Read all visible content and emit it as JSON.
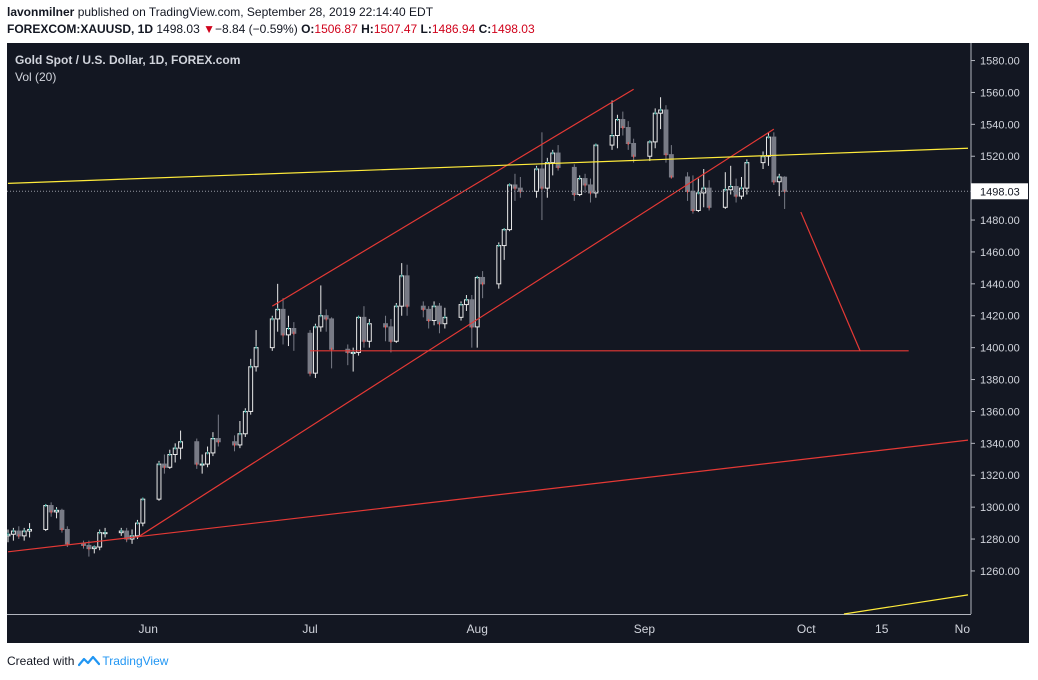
{
  "header": {
    "author": "lavonmilner",
    "published_text": " published on TradingView.com, September 28, 2019 22:14:40 EDT",
    "symbol": "FOREXCOM:XAUUSD, 1D",
    "last": "1498.03",
    "change": "−8.84 (−0.59%)",
    "open_label": "O:",
    "open": "1506.87",
    "high_label": "H:",
    "high": "1507.47",
    "low_label": "L:",
    "low": "1486.94",
    "close_label": "C:",
    "close": "1498.03"
  },
  "legend": {
    "title": "Gold Spot / U.S. Dollar, 1D, FOREX.com",
    "volume": "Vol (20)"
  },
  "footer": {
    "created_with": "Created with",
    "brand": "TradingView"
  },
  "colors": {
    "background": "#131722",
    "candle_up": "#e8e8e8",
    "candle_down": "#787b86",
    "volume_up": "#26a69a",
    "volume_down": "#ef5350",
    "trendline_red": "#e53935",
    "trendline_yellow": "#ffeb3b",
    "price_label_bg": "#ffffff"
  },
  "chart_data": {
    "type": "candlestick",
    "symbol": "XAUUSD",
    "timeframe": "1D",
    "x_tick_labels": [
      "Jun",
      "Jul",
      "Aug",
      "Sep",
      "Oct",
      "15",
      "No"
    ],
    "y_ticks": [
      1260,
      1280,
      1300,
      1320,
      1340,
      1360,
      1380,
      1400,
      1420,
      1440,
      1460,
      1480,
      1500,
      1520,
      1540,
      1560,
      1580
    ],
    "ylim": [
      1233,
      1591
    ],
    "last_price": 1498.03,
    "last_price_label": "1498.03",
    "x_range": [
      "2019-05-06",
      "2019-10-31"
    ],
    "candles": [
      {
        "date": "2019-05-06",
        "o": 1282,
        "h": 1286,
        "l": 1278,
        "c": 1283
      },
      {
        "date": "2019-05-07",
        "o": 1283,
        "h": 1287,
        "l": 1279,
        "c": 1285
      },
      {
        "date": "2019-05-08",
        "o": 1285,
        "h": 1288,
        "l": 1280,
        "c": 1282
      },
      {
        "date": "2019-05-09",
        "o": 1282,
        "h": 1287,
        "l": 1279,
        "c": 1285
      },
      {
        "date": "2019-05-10",
        "o": 1285,
        "h": 1290,
        "l": 1281,
        "c": 1286
      },
      {
        "date": "2019-05-13",
        "o": 1286,
        "h": 1302,
        "l": 1285,
        "c": 1301
      },
      {
        "date": "2019-05-14",
        "o": 1301,
        "h": 1303,
        "l": 1294,
        "c": 1297
      },
      {
        "date": "2019-05-15",
        "o": 1297,
        "h": 1300,
        "l": 1293,
        "c": 1298
      },
      {
        "date": "2019-05-16",
        "o": 1298,
        "h": 1299,
        "l": 1284,
        "c": 1286
      },
      {
        "date": "2019-05-17",
        "o": 1286,
        "h": 1288,
        "l": 1275,
        "c": 1277
      },
      {
        "date": "2019-05-20",
        "o": 1277,
        "h": 1279,
        "l": 1274,
        "c": 1276
      },
      {
        "date": "2019-05-21",
        "o": 1276,
        "h": 1279,
        "l": 1269,
        "c": 1274
      },
      {
        "date": "2019-05-22",
        "o": 1274,
        "h": 1276,
        "l": 1271,
        "c": 1275
      },
      {
        "date": "2019-05-23",
        "o": 1275,
        "h": 1286,
        "l": 1273,
        "c": 1284
      },
      {
        "date": "2019-05-24",
        "o": 1284,
        "h": 1287,
        "l": 1281,
        "c": 1284
      },
      {
        "date": "2019-05-27",
        "o": 1284,
        "h": 1287,
        "l": 1282,
        "c": 1285
      },
      {
        "date": "2019-05-28",
        "o": 1285,
        "h": 1287,
        "l": 1278,
        "c": 1280
      },
      {
        "date": "2019-05-29",
        "o": 1280,
        "h": 1286,
        "l": 1277,
        "c": 1282
      },
      {
        "date": "2019-05-30",
        "o": 1282,
        "h": 1292,
        "l": 1280,
        "c": 1290
      },
      {
        "date": "2019-05-31",
        "o": 1290,
        "h": 1306,
        "l": 1288,
        "c": 1305
      },
      {
        "date": "2019-06-03",
        "o": 1305,
        "h": 1329,
        "l": 1304,
        "c": 1327
      },
      {
        "date": "2019-06-04",
        "o": 1327,
        "h": 1333,
        "l": 1321,
        "c": 1325
      },
      {
        "date": "2019-06-05",
        "o": 1325,
        "h": 1336,
        "l": 1324,
        "c": 1333
      },
      {
        "date": "2019-06-06",
        "o": 1333,
        "h": 1340,
        "l": 1328,
        "c": 1337
      },
      {
        "date": "2019-06-07",
        "o": 1337,
        "h": 1348,
        "l": 1330,
        "c": 1341
      },
      {
        "date": "2019-06-10",
        "o": 1341,
        "h": 1343,
        "l": 1324,
        "c": 1327
      },
      {
        "date": "2019-06-11",
        "o": 1327,
        "h": 1333,
        "l": 1321,
        "c": 1327
      },
      {
        "date": "2019-06-12",
        "o": 1327,
        "h": 1338,
        "l": 1325,
        "c": 1334
      },
      {
        "date": "2019-06-13",
        "o": 1334,
        "h": 1347,
        "l": 1332,
        "c": 1343
      },
      {
        "date": "2019-06-14",
        "o": 1343,
        "h": 1358,
        "l": 1338,
        "c": 1341
      },
      {
        "date": "2019-06-17",
        "o": 1341,
        "h": 1345,
        "l": 1335,
        "c": 1339
      },
      {
        "date": "2019-06-18",
        "o": 1339,
        "h": 1354,
        "l": 1337,
        "c": 1346
      },
      {
        "date": "2019-06-19",
        "o": 1346,
        "h": 1362,
        "l": 1344,
        "c": 1360
      },
      {
        "date": "2019-06-20",
        "o": 1360,
        "h": 1393,
        "l": 1358,
        "c": 1388
      },
      {
        "date": "2019-06-21",
        "o": 1388,
        "h": 1411,
        "l": 1385,
        "c": 1400
      },
      {
        "date": "2019-06-24",
        "o": 1400,
        "h": 1420,
        "l": 1398,
        "c": 1418
      },
      {
        "date": "2019-06-25",
        "o": 1418,
        "h": 1440,
        "l": 1410,
        "c": 1424
      },
      {
        "date": "2019-06-26",
        "o": 1424,
        "h": 1431,
        "l": 1402,
        "c": 1408
      },
      {
        "date": "2019-06-27",
        "o": 1408,
        "h": 1420,
        "l": 1401,
        "c": 1412
      },
      {
        "date": "2019-06-28",
        "o": 1412,
        "h": 1416,
        "l": 1398,
        "c": 1409
      },
      {
        "date": "2019-07-01",
        "o": 1409,
        "h": 1411,
        "l": 1382,
        "c": 1384
      },
      {
        "date": "2019-07-02",
        "o": 1384,
        "h": 1415,
        "l": 1381,
        "c": 1413
      },
      {
        "date": "2019-07-03",
        "o": 1413,
        "h": 1439,
        "l": 1410,
        "c": 1420
      },
      {
        "date": "2019-07-04",
        "o": 1420,
        "h": 1424,
        "l": 1410,
        "c": 1418
      },
      {
        "date": "2019-07-05",
        "o": 1418,
        "h": 1419,
        "l": 1387,
        "c": 1399
      },
      {
        "date": "2019-07-08",
        "o": 1399,
        "h": 1402,
        "l": 1389,
        "c": 1397
      },
      {
        "date": "2019-07-09",
        "o": 1397,
        "h": 1400,
        "l": 1385,
        "c": 1397
      },
      {
        "date": "2019-07-10",
        "o": 1397,
        "h": 1420,
        "l": 1395,
        "c": 1419
      },
      {
        "date": "2019-07-11",
        "o": 1419,
        "h": 1426,
        "l": 1400,
        "c": 1404
      },
      {
        "date": "2019-07-12",
        "o": 1404,
        "h": 1418,
        "l": 1400,
        "c": 1415
      },
      {
        "date": "2019-07-15",
        "o": 1415,
        "h": 1420,
        "l": 1404,
        "c": 1413
      },
      {
        "date": "2019-07-16",
        "o": 1413,
        "h": 1418,
        "l": 1397,
        "c": 1404
      },
      {
        "date": "2019-07-17",
        "o": 1404,
        "h": 1428,
        "l": 1403,
        "c": 1426
      },
      {
        "date": "2019-07-18",
        "o": 1426,
        "h": 1453,
        "l": 1420,
        "c": 1445
      },
      {
        "date": "2019-07-19",
        "o": 1445,
        "h": 1452,
        "l": 1420,
        "c": 1426
      },
      {
        "date": "2019-07-22",
        "o": 1426,
        "h": 1429,
        "l": 1419,
        "c": 1424
      },
      {
        "date": "2019-07-23",
        "o": 1424,
        "h": 1426,
        "l": 1412,
        "c": 1417
      },
      {
        "date": "2019-07-24",
        "o": 1417,
        "h": 1429,
        "l": 1414,
        "c": 1426
      },
      {
        "date": "2019-07-25",
        "o": 1426,
        "h": 1428,
        "l": 1409,
        "c": 1415
      },
      {
        "date": "2019-07-26",
        "o": 1415,
        "h": 1425,
        "l": 1412,
        "c": 1419
      },
      {
        "date": "2019-07-29",
        "o": 1419,
        "h": 1429,
        "l": 1417,
        "c": 1427
      },
      {
        "date": "2019-07-30",
        "o": 1427,
        "h": 1433,
        "l": 1423,
        "c": 1430
      },
      {
        "date": "2019-07-31",
        "o": 1430,
        "h": 1433,
        "l": 1400,
        "c": 1413
      },
      {
        "date": "2019-08-01",
        "o": 1413,
        "h": 1445,
        "l": 1400,
        "c": 1444
      },
      {
        "date": "2019-08-02",
        "o": 1444,
        "h": 1448,
        "l": 1431,
        "c": 1440
      },
      {
        "date": "2019-08-05",
        "o": 1440,
        "h": 1466,
        "l": 1437,
        "c": 1464
      },
      {
        "date": "2019-08-06",
        "o": 1464,
        "h": 1475,
        "l": 1455,
        "c": 1474
      },
      {
        "date": "2019-08-07",
        "o": 1474,
        "h": 1503,
        "l": 1473,
        "c": 1502
      },
      {
        "date": "2019-08-08",
        "o": 1502,
        "h": 1509,
        "l": 1492,
        "c": 1500
      },
      {
        "date": "2019-08-09",
        "o": 1500,
        "h": 1507,
        "l": 1494,
        "c": 1498
      },
      {
        "date": "2019-08-12",
        "o": 1498,
        "h": 1514,
        "l": 1494,
        "c": 1512
      },
      {
        "date": "2019-08-13",
        "o": 1512,
        "h": 1535,
        "l": 1480,
        "c": 1500
      },
      {
        "date": "2019-08-14",
        "o": 1500,
        "h": 1519,
        "l": 1494,
        "c": 1516
      },
      {
        "date": "2019-08-15",
        "o": 1516,
        "h": 1524,
        "l": 1508,
        "c": 1522
      },
      {
        "date": "2019-08-16",
        "o": 1522,
        "h": 1527,
        "l": 1511,
        "c": 1513
      },
      {
        "date": "2019-08-19",
        "o": 1513,
        "h": 1515,
        "l": 1492,
        "c": 1496
      },
      {
        "date": "2019-08-20",
        "o": 1496,
        "h": 1508,
        "l": 1495,
        "c": 1506
      },
      {
        "date": "2019-08-21",
        "o": 1506,
        "h": 1509,
        "l": 1497,
        "c": 1502
      },
      {
        "date": "2019-08-22",
        "o": 1502,
        "h": 1506,
        "l": 1491,
        "c": 1497
      },
      {
        "date": "2019-08-23",
        "o": 1497,
        "h": 1528,
        "l": 1494,
        "c": 1527
      },
      {
        "date": "2019-08-26",
        "o": 1527,
        "h": 1555,
        "l": 1524,
        "c": 1533
      },
      {
        "date": "2019-08-27",
        "o": 1533,
        "h": 1546,
        "l": 1525,
        "c": 1543
      },
      {
        "date": "2019-08-28",
        "o": 1543,
        "h": 1548,
        "l": 1533,
        "c": 1538
      },
      {
        "date": "2019-08-29",
        "o": 1538,
        "h": 1542,
        "l": 1524,
        "c": 1528
      },
      {
        "date": "2019-08-30",
        "o": 1528,
        "h": 1531,
        "l": 1516,
        "c": 1520
      },
      {
        "date": "2019-09-02",
        "o": 1520,
        "h": 1530,
        "l": 1517,
        "c": 1529
      },
      {
        "date": "2019-09-03",
        "o": 1529,
        "h": 1550,
        "l": 1525,
        "c": 1547
      },
      {
        "date": "2019-09-04",
        "o": 1547,
        "h": 1557,
        "l": 1537,
        "c": 1549
      },
      {
        "date": "2019-09-05",
        "o": 1549,
        "h": 1552,
        "l": 1516,
        "c": 1521
      },
      {
        "date": "2019-09-06",
        "o": 1521,
        "h": 1527,
        "l": 1506,
        "c": 1507
      },
      {
        "date": "2019-09-09",
        "o": 1507,
        "h": 1510,
        "l": 1492,
        "c": 1498
      },
      {
        "date": "2019-09-10",
        "o": 1498,
        "h": 1508,
        "l": 1484,
        "c": 1486
      },
      {
        "date": "2019-09-11",
        "o": 1486,
        "h": 1506,
        "l": 1485,
        "c": 1497
      },
      {
        "date": "2019-09-12",
        "o": 1497,
        "h": 1512,
        "l": 1488,
        "c": 1500
      },
      {
        "date": "2019-09-13",
        "o": 1500,
        "h": 1505,
        "l": 1486,
        "c": 1488
      },
      {
        "date": "2019-09-16",
        "o": 1488,
        "h": 1510,
        "l": 1487,
        "c": 1499
      },
      {
        "date": "2019-09-17",
        "o": 1499,
        "h": 1514,
        "l": 1496,
        "c": 1501
      },
      {
        "date": "2019-09-18",
        "o": 1501,
        "h": 1506,
        "l": 1491,
        "c": 1495
      },
      {
        "date": "2019-09-19",
        "o": 1495,
        "h": 1507,
        "l": 1493,
        "c": 1500
      },
      {
        "date": "2019-09-20",
        "o": 1500,
        "h": 1518,
        "l": 1496,
        "c": 1516
      },
      {
        "date": "2019-09-23",
        "o": 1516,
        "h": 1523,
        "l": 1512,
        "c": 1520
      },
      {
        "date": "2019-09-24",
        "o": 1520,
        "h": 1535,
        "l": 1514,
        "c": 1532
      },
      {
        "date": "2019-09-25",
        "o": 1532,
        "h": 1535,
        "l": 1502,
        "c": 1504
      },
      {
        "date": "2019-09-26",
        "o": 1504,
        "h": 1509,
        "l": 1495,
        "c": 1507
      },
      {
        "date": "2019-09-27",
        "o": 1506.87,
        "h": 1507.47,
        "l": 1486.94,
        "c": 1498.03
      }
    ],
    "trendlines": [
      {
        "name": "upper-channel",
        "color": "red",
        "from": [
          "2019-06-24",
          1426
        ],
        "to": [
          "2019-08-30",
          1562
        ]
      },
      {
        "name": "lower-channel",
        "color": "red",
        "from": [
          "2019-05-30",
          1281
        ],
        "to": [
          "2019-09-25",
          1537
        ]
      },
      {
        "name": "long-term-support",
        "color": "red",
        "from": [
          "2019-05-06",
          1272
        ],
        "to": [
          "2019-10-31",
          1342
        ]
      },
      {
        "name": "horizontal-support",
        "color": "red",
        "from": [
          "2019-07-01",
          1398
        ],
        "to": [
          "2019-10-20",
          1398
        ]
      },
      {
        "name": "projection",
        "color": "red",
        "from": [
          "2019-09-30",
          1485
        ],
        "to": [
          "2019-10-11",
          1398
        ]
      },
      {
        "name": "yellow-resistance",
        "color": "yellow",
        "from": [
          "2019-05-06",
          1503
        ],
        "to": [
          "2019-10-31",
          1525
        ]
      },
      {
        "name": "yellow-lower",
        "color": "yellow",
        "from": [
          "2019-10-08",
          1233
        ],
        "to": [
          "2019-10-31",
          1245
        ]
      }
    ]
  }
}
